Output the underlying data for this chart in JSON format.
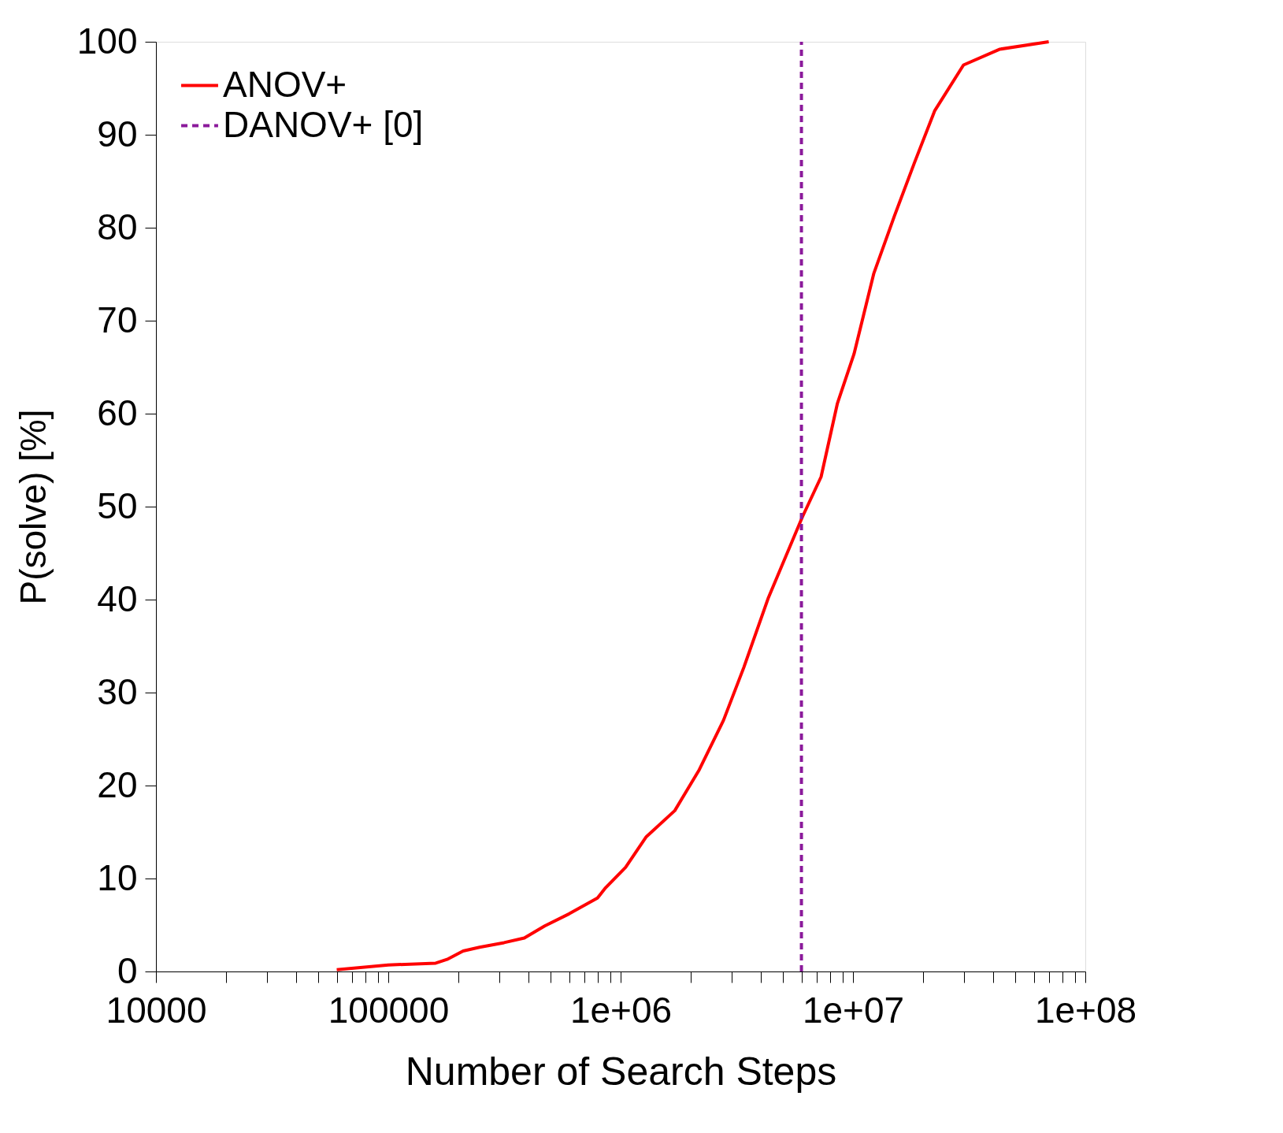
{
  "chart_data": {
    "type": "line",
    "xlabel": "Number of Search Steps",
    "ylabel": "P(solve) [%]",
    "log": "x",
    "xlim": [
      10000,
      100000000
    ],
    "ylim": [
      0,
      100
    ],
    "xticks": [
      {
        "value": 10000,
        "label": "10000"
      },
      {
        "value": 20000,
        "label": null
      },
      {
        "value": 30000,
        "label": null
      },
      {
        "value": 40000,
        "label": null
      },
      {
        "value": 50000,
        "label": null
      },
      {
        "value": 60000,
        "label": null
      },
      {
        "value": 70000,
        "label": null
      },
      {
        "value": 80000,
        "label": null
      },
      {
        "value": 90000,
        "label": null
      },
      {
        "value": 100000,
        "label": "100000"
      },
      {
        "value": 200000,
        "label": null
      },
      {
        "value": 300000,
        "label": null
      },
      {
        "value": 400000,
        "label": null
      },
      {
        "value": 500000,
        "label": null
      },
      {
        "value": 600000,
        "label": null
      },
      {
        "value": 700000,
        "label": null
      },
      {
        "value": 800000,
        "label": null
      },
      {
        "value": 900000,
        "label": null
      },
      {
        "value": 1000000,
        "label": "1e+06"
      },
      {
        "value": 2000000,
        "label": null
      },
      {
        "value": 3000000,
        "label": null
      },
      {
        "value": 4000000,
        "label": null
      },
      {
        "value": 5000000,
        "label": null
      },
      {
        "value": 6000000,
        "label": null
      },
      {
        "value": 7000000,
        "label": null
      },
      {
        "value": 8000000,
        "label": null
      },
      {
        "value": 9000000,
        "label": null
      },
      {
        "value": 10000000,
        "label": "1e+07"
      },
      {
        "value": 20000000,
        "label": null
      },
      {
        "value": 30000000,
        "label": null
      },
      {
        "value": 40000000,
        "label": null
      },
      {
        "value": 50000000,
        "label": null
      },
      {
        "value": 60000000,
        "label": null
      },
      {
        "value": 70000000,
        "label": null
      },
      {
        "value": 80000000,
        "label": null
      },
      {
        "value": 90000000,
        "label": null
      },
      {
        "value": 100000000,
        "label": "1e+08"
      }
    ],
    "yticks": [
      0,
      10,
      20,
      30,
      40,
      50,
      60,
      70,
      80,
      90,
      100
    ],
    "grid": false,
    "legend": "top",
    "marker": "none",
    "series": [
      {
        "name": "ANOV+",
        "color": "#ff0000",
        "line_style": "solid",
        "x": [
          60000,
          100000,
          160000,
          179000,
          210000,
          247000,
          315000,
          385000,
          471000,
          600000,
          795000,
          861000,
          1050000,
          1290000,
          1710000,
          2180000,
          2770000,
          3390000,
          4310000,
          6060000,
          7290000,
          8570000,
          10100000,
          12300000,
          15100000,
          18400000,
          22500000,
          29900000,
          42900000,
          69600000
        ],
        "values": [
          0.2,
          0.7,
          0.9,
          1.3,
          2.2,
          2.6,
          3.1,
          3.6,
          4.9,
          6.2,
          7.9,
          9.0,
          11.2,
          14.5,
          17.3,
          21.7,
          27.0,
          32.7,
          40.1,
          48.9,
          53.2,
          61.1,
          66.4,
          75.1,
          81.3,
          87.0,
          92.6,
          97.5,
          99.2,
          100
        ]
      },
      {
        "name": "DANOV+ [0]",
        "color": "#8b1a9b",
        "line_style": "dashed",
        "x": [
          6000000,
          6000000
        ],
        "values": [
          0,
          100
        ]
      }
    ]
  }
}
